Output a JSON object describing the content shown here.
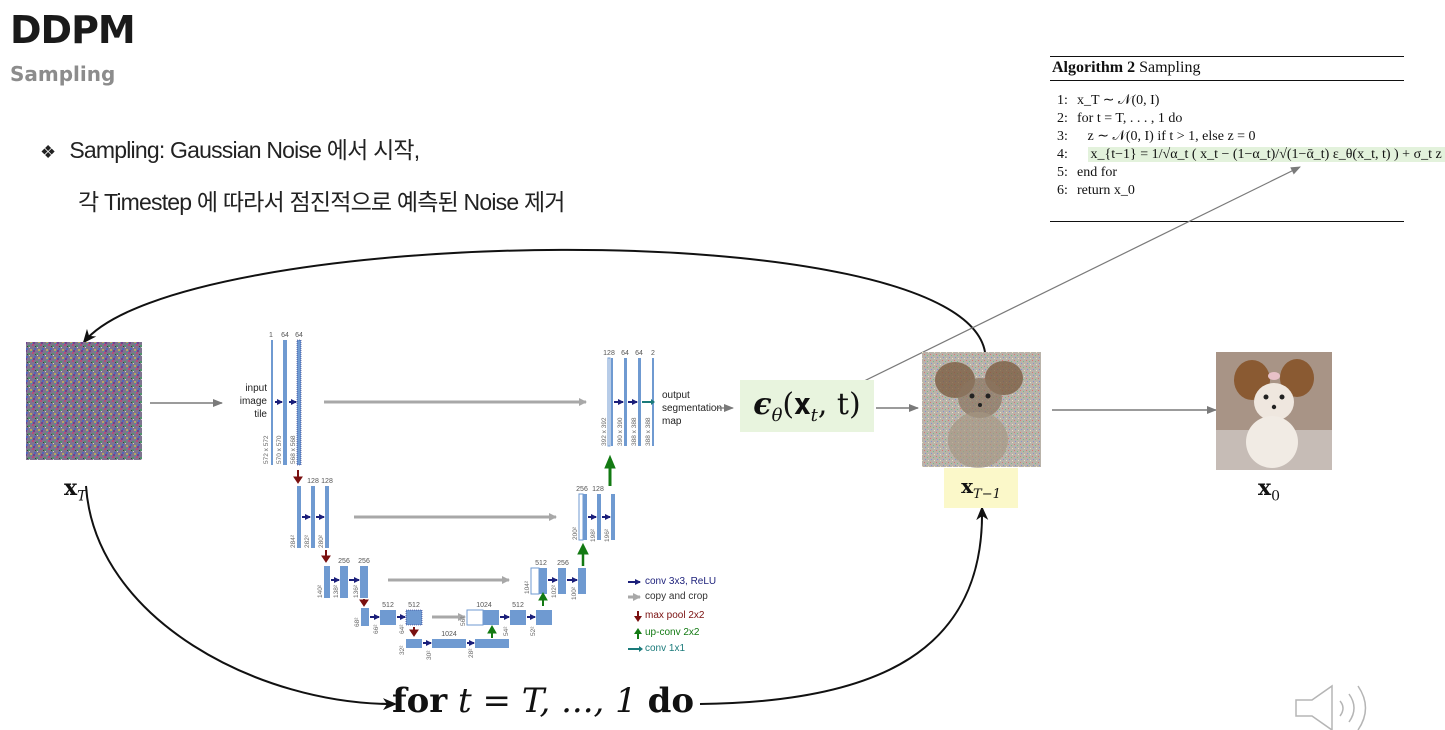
{
  "slide": {
    "title": "DDPM",
    "subtitle": "Sampling",
    "bullet_icon": "❖",
    "bullet_line1": "Sampling: Gaussian Noise 에서 시작,",
    "bullet_line2": "각 Timestep 에 따라서 점진적으로 예측된 Noise 제거"
  },
  "algorithm": {
    "title_bold": "Algorithm 2",
    "title_rest": "Sampling",
    "lines": [
      {
        "num": "1:",
        "text": "x_T ∼ 𝒩(0, I)"
      },
      {
        "num": "2:",
        "text": "for t = T, . . . , 1 do"
      },
      {
        "num": "3:",
        "text": "z ∼ 𝒩(0, I) if t > 1, else z = 0"
      },
      {
        "num": "4:",
        "text": "x_{t−1} = 1/√α_t ( x_t − (1−α_t)/√(1−ᾱ_t) ε_θ(x_t, t) ) + σ_t z"
      },
      {
        "num": "5:",
        "text": "end for"
      },
      {
        "num": "6:",
        "text": "return x_0"
      }
    ]
  },
  "labels": {
    "x_T": "𝐱",
    "x_T_sub": "T",
    "x_Tm1": "𝐱",
    "x_Tm1_sub": "T−1",
    "x_0": "𝐱",
    "x_0_sub": "0",
    "eps": "ϵ",
    "eps_sub": "θ",
    "eps_args_a": "(𝐱",
    "eps_args_sub": "t",
    "eps_args_b": ", t)",
    "loop_for": "for",
    "loop_t": "t",
    "loop_mid": "= T, ..., 1",
    "loop_do": "do"
  },
  "unet": {
    "input_text": [
      "input",
      "image",
      "tile"
    ],
    "output_text": [
      "output",
      "segmentation",
      "map"
    ],
    "legend": [
      {
        "label": "conv 3x3, ReLU",
        "color": "#1b1f7a"
      },
      {
        "label": "copy and crop",
        "color": "#333333"
      },
      {
        "label": "max pool 2x2",
        "color": "#7a1010"
      },
      {
        "label": "up-conv 2x2",
        "color": "#137a13"
      },
      {
        "label": "conv 1x1",
        "color": "#1a7a7a"
      }
    ],
    "channel_labels": {
      "l1": [
        "1",
        "64",
        "64"
      ],
      "l2": [
        "128",
        "128"
      ],
      "l3": [
        "256",
        "256"
      ],
      "l4": [
        "512",
        "512"
      ],
      "l5": [
        "1024"
      ],
      "r4": [
        "1024",
        "512"
      ],
      "r3": [
        "512",
        "256"
      ],
      "r2": [
        "256",
        "128"
      ],
      "r1": [
        "128",
        "64",
        "64",
        "2"
      ]
    },
    "size_labels": {
      "l1": [
        "572 x 572",
        "570 x 570",
        "568 x 568"
      ],
      "l2": [
        "284²",
        "282²",
        "280²"
      ],
      "l3": [
        "140²",
        "138²",
        "136²"
      ],
      "l4": [
        "68²",
        "66²",
        "64²"
      ],
      "l5": [
        "32²",
        "30²",
        "28²"
      ],
      "r4": [
        "56²",
        "54²",
        "52²"
      ],
      "r3": [
        "104²",
        "102²",
        "100²"
      ],
      "r2": [
        "200²",
        "198²",
        "196²"
      ],
      "r1": [
        "392 x 392",
        "390 x 390",
        "388 x 388",
        "388 x 388"
      ]
    }
  },
  "colors": {
    "arrow_gray": "#7a7a7a",
    "block_blue": "#6f9ad1",
    "eps_bg": "#e8f4de",
    "xTm1_bg": "#fbf8c9",
    "algo_highlight": "#e3f2dc"
  },
  "icons": {
    "speaker": "speaker-icon"
  }
}
